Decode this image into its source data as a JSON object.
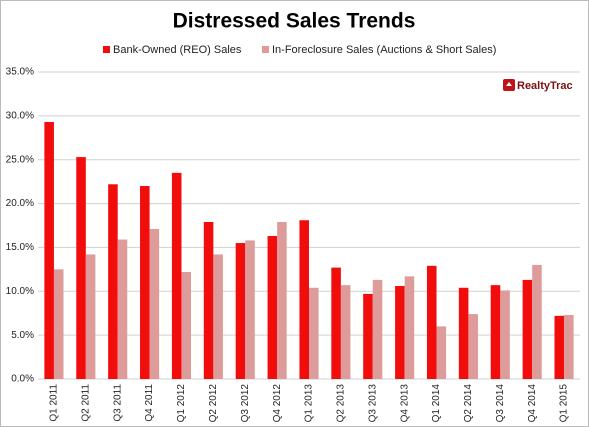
{
  "chart_data": {
    "type": "bar",
    "title": "Distressed Sales Trends",
    "logo": "RealtyTrac",
    "categories": [
      "Q1 2011",
      "Q2 2011",
      "Q3 2011",
      "Q4 2011",
      "Q1 2012",
      "Q2 2012",
      "Q3 2012",
      "Q4 2012",
      "Q1 2013",
      "Q2 2013",
      "Q3 2013",
      "Q4 2013",
      "Q1 2014",
      "Q2 2014",
      "Q3 2014",
      "Q4 2014",
      "Q1 2015"
    ],
    "series": [
      {
        "name": "Bank-Owned (REO) Sales",
        "color": "#f20d0d",
        "values": [
          29.3,
          25.3,
          22.2,
          22.0,
          23.5,
          17.9,
          15.5,
          16.3,
          18.1,
          12.7,
          9.7,
          10.6,
          12.9,
          10.4,
          10.7,
          11.3,
          7.2
        ]
      },
      {
        "name": "In-Foreclosure Sales (Auctions & Short Sales)",
        "color": "#dd9c9a",
        "values": [
          12.5,
          14.2,
          15.9,
          17.1,
          12.2,
          14.2,
          15.8,
          17.9,
          10.4,
          10.7,
          11.3,
          11.7,
          6.0,
          7.4,
          10.1,
          13.0,
          7.3
        ]
      }
    ],
    "ylim": [
      0,
      35
    ],
    "yticks": [
      {
        "value": 0,
        "label": "0.0%"
      },
      {
        "value": 5,
        "label": "5.0%"
      },
      {
        "value": 10,
        "label": "10.0%"
      },
      {
        "value": 15,
        "label": "15.0%"
      },
      {
        "value": 20,
        "label": "20.0%"
      },
      {
        "value": 25,
        "label": "25.0%"
      },
      {
        "value": 30,
        "label": "30.0%"
      },
      {
        "value": 35,
        "label": "35.0%"
      }
    ],
    "grid": true
  }
}
